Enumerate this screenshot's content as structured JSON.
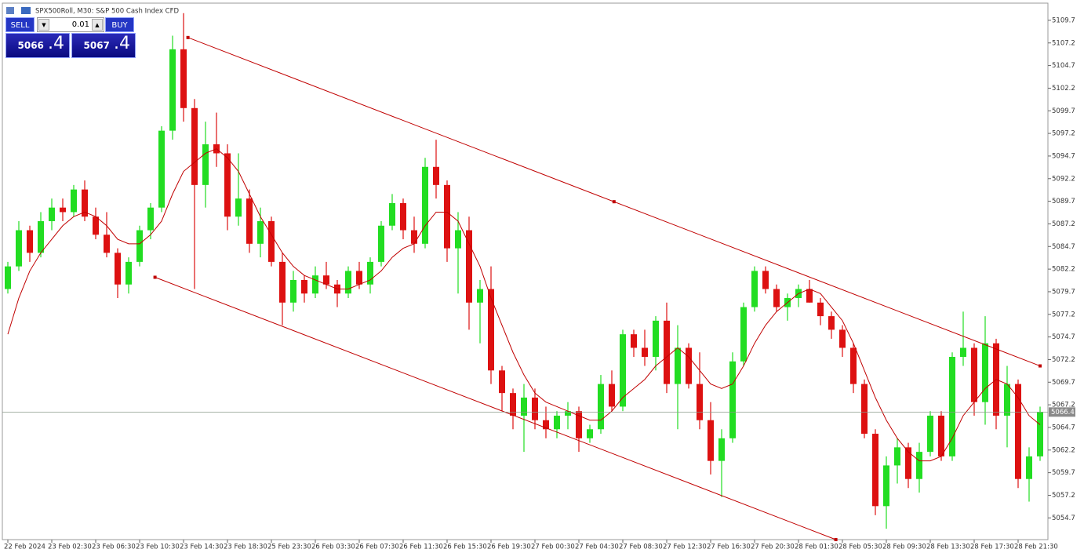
{
  "header": {
    "title": "SPX500Roll, M30:  S&P 500 Cash Index CFD"
  },
  "trade_panel": {
    "sell": "SELL",
    "buy": "BUY",
    "volume": "0.01",
    "bid": {
      "big": "5066",
      "small": ".4"
    },
    "ask": {
      "big": "5067",
      "small": ".4"
    }
  },
  "chart_data": {
    "type": "candlestick",
    "categories": [
      "22 Feb 2024",
      null,
      null,
      null,
      "23 Feb 02:30",
      null,
      null,
      null,
      "23 Feb 06:30",
      null,
      null,
      null,
      "23 Feb 10:30",
      null,
      null,
      null,
      "23 Feb 14:30",
      null,
      null,
      null,
      "23 Feb 18:30",
      null,
      null,
      null,
      "25 Feb 23:30",
      null,
      null,
      null,
      "26 Feb 03:30",
      null,
      null,
      null,
      "26 Feb 07:30",
      null,
      null,
      null,
      "26 Feb 11:30",
      null,
      null,
      null,
      "26 Feb 15:30",
      null,
      null,
      null,
      "26 Feb 19:30",
      null,
      null,
      null,
      "27 Feb 00:30",
      null,
      null,
      null,
      "27 Feb 04:30",
      null,
      null,
      null,
      "27 Feb 08:30",
      null,
      null,
      null,
      "27 Feb 12:30",
      null,
      null,
      null,
      "27 Feb 16:30",
      null,
      null,
      null,
      "27 Feb 20:30",
      null,
      null,
      null,
      "28 Feb 01:30",
      null,
      null,
      null,
      "28 Feb 05:30",
      null,
      null,
      null,
      "28 Feb 09:30",
      null,
      null,
      null,
      "28 Feb 13:30",
      null,
      null,
      null,
      "28 Feb 17:30",
      null,
      null,
      null,
      "28 Feb 21:30",
      null,
      null
    ],
    "ohlc": [
      [
        5080.0,
        5083.0,
        5079.5,
        5082.5
      ],
      [
        5082.5,
        5087.5,
        5082.0,
        5086.5
      ],
      [
        5086.5,
        5087.0,
        5083.0,
        5084.0
      ],
      [
        5084.0,
        5088.5,
        5083.5,
        5087.5
      ],
      [
        5087.5,
        5090.0,
        5086.5,
        5089.0
      ],
      [
        5089.0,
        5090.0,
        5087.5,
        5088.5
      ],
      [
        5088.5,
        5091.5,
        5088.0,
        5091.0
      ],
      [
        5091.0,
        5092.0,
        5087.5,
        5088.0
      ],
      [
        5088.0,
        5089.0,
        5085.5,
        5086.0
      ],
      [
        5086.0,
        5088.5,
        5083.5,
        5084.0
      ],
      [
        5084.0,
        5084.5,
        5079.0,
        5080.5
      ],
      [
        5080.5,
        5083.5,
        5079.5,
        5083.0
      ],
      [
        5083.0,
        5087.0,
        5082.5,
        5086.5
      ],
      [
        5086.5,
        5089.5,
        5085.5,
        5089.0
      ],
      [
        5089.0,
        5098.0,
        5088.5,
        5097.5
      ],
      [
        5097.5,
        5108.0,
        5096.5,
        5106.5
      ],
      [
        5106.5,
        5110.5,
        5098.5,
        5100.0
      ],
      [
        5100.0,
        5101.0,
        5080.0,
        5091.5
      ],
      [
        5091.5,
        5098.5,
        5089.0,
        5096.0
      ],
      [
        5096.0,
        5099.5,
        5093.5,
        5095.0
      ],
      [
        5095.0,
        5096.0,
        5086.5,
        5088.0
      ],
      [
        5088.0,
        5095.0,
        5087.0,
        5090.0
      ],
      [
        5090.0,
        5091.0,
        5084.0,
        5085.0
      ],
      [
        5085.0,
        5089.0,
        5083.5,
        5087.5
      ],
      [
        5087.5,
        5088.0,
        5082.5,
        5083.0
      ],
      [
        5083.0,
        5084.0,
        5076.0,
        5078.5
      ],
      [
        5078.5,
        5082.0,
        5077.5,
        5081.0
      ],
      [
        5081.0,
        5081.5,
        5078.5,
        5079.5
      ],
      [
        5079.5,
        5082.5,
        5079.0,
        5081.5
      ],
      [
        5081.5,
        5083.0,
        5080.0,
        5080.5
      ],
      [
        5080.5,
        5081.0,
        5078.0,
        5079.5
      ],
      [
        5079.5,
        5082.5,
        5079.0,
        5082.0
      ],
      [
        5082.0,
        5083.0,
        5080.0,
        5080.5
      ],
      [
        5080.5,
        5083.5,
        5079.5,
        5083.0
      ],
      [
        5083.0,
        5087.5,
        5082.5,
        5087.0
      ],
      [
        5087.0,
        5090.5,
        5086.5,
        5089.5
      ],
      [
        5089.5,
        5090.0,
        5085.5,
        5086.5
      ],
      [
        5086.5,
        5088.0,
        5084.0,
        5085.0
      ],
      [
        5085.0,
        5094.5,
        5084.5,
        5093.5
      ],
      [
        5093.5,
        5096.5,
        5090.0,
        5091.5
      ],
      [
        5091.5,
        5092.0,
        5083.0,
        5084.5
      ],
      [
        5084.5,
        5088.5,
        5079.5,
        5086.5
      ],
      [
        5086.5,
        5088.0,
        5075.5,
        5078.5
      ],
      [
        5078.5,
        5081.0,
        5074.0,
        5080.0
      ],
      [
        5080.0,
        5082.5,
        5069.5,
        5071.0
      ],
      [
        5071.0,
        5071.5,
        5066.5,
        5068.5
      ],
      [
        5068.5,
        5069.0,
        5064.5,
        5066.0
      ],
      [
        5066.0,
        5069.5,
        5062.0,
        5068.0
      ],
      [
        5068.0,
        5069.0,
        5064.5,
        5065.5
      ],
      [
        5065.5,
        5067.0,
        5063.5,
        5064.5
      ],
      [
        5064.5,
        5066.5,
        5063.5,
        5066.0
      ],
      [
        5066.0,
        5067.5,
        5064.5,
        5066.5
      ],
      [
        5066.5,
        5067.0,
        5062.0,
        5063.5
      ],
      [
        5063.5,
        5065.0,
        5063.0,
        5064.5
      ],
      [
        5064.5,
        5070.5,
        5064.0,
        5069.5
      ],
      [
        5069.5,
        5071.0,
        5066.5,
        5067.0
      ],
      [
        5067.0,
        5075.5,
        5066.5,
        5075.0
      ],
      [
        5075.0,
        5075.5,
        5072.5,
        5073.5
      ],
      [
        5073.5,
        5075.5,
        5071.5,
        5072.5
      ],
      [
        5072.5,
        5077.0,
        5071.0,
        5076.5
      ],
      [
        5076.5,
        5078.5,
        5068.5,
        5069.5
      ],
      [
        5069.5,
        5076.0,
        5064.5,
        5073.5
      ],
      [
        5073.5,
        5074.0,
        5069.0,
        5069.5
      ],
      [
        5069.5,
        5073.0,
        5064.5,
        5065.5
      ],
      [
        5065.5,
        5067.5,
        5059.5,
        5061.0
      ],
      [
        5061.0,
        5064.5,
        5057.0,
        5063.5
      ],
      [
        5063.5,
        5073.0,
        5063.0,
        5072.0
      ],
      [
        5072.0,
        5078.5,
        5071.5,
        5078.0
      ],
      [
        5078.0,
        5082.5,
        5077.5,
        5082.0
      ],
      [
        5082.0,
        5082.5,
        5079.5,
        5080.0
      ],
      [
        5080.0,
        5080.5,
        5077.5,
        5078.0
      ],
      [
        5078.0,
        5079.5,
        5076.5,
        5079.0
      ],
      [
        5079.0,
        5080.5,
        5078.0,
        5080.0
      ],
      [
        5080.0,
        5081.0,
        5078.5,
        5078.5
      ],
      [
        5078.5,
        5079.0,
        5076.0,
        5077.0
      ],
      [
        5077.0,
        5077.5,
        5074.5,
        5075.5
      ],
      [
        5075.5,
        5076.0,
        5072.5,
        5073.5
      ],
      [
        5073.5,
        5074.0,
        5068.5,
        5069.5
      ],
      [
        5069.5,
        5070.0,
        5063.5,
        5064.0
      ],
      [
        5064.0,
        5064.5,
        5055.0,
        5056.0
      ],
      [
        5056.0,
        5061.5,
        5053.5,
        5060.5
      ],
      [
        5060.5,
        5063.5,
        5058.5,
        5062.5
      ],
      [
        5062.5,
        5063.0,
        5058.0,
        5059.0
      ],
      [
        5059.0,
        5063.0,
        5057.5,
        5062.0
      ],
      [
        5062.0,
        5066.5,
        5061.5,
        5066.0
      ],
      [
        5066.0,
        5066.5,
        5061.0,
        5061.5
      ],
      [
        5061.5,
        5073.0,
        5061.0,
        5072.5
      ],
      [
        5072.5,
        5077.5,
        5071.5,
        5073.5
      ],
      [
        5073.5,
        5074.0,
        5066.0,
        5067.5
      ],
      [
        5067.5,
        5077.0,
        5065.0,
        5074.0
      ],
      [
        5074.0,
        5074.5,
        5064.5,
        5066.0
      ],
      [
        5066.0,
        5071.5,
        5062.5,
        5069.5
      ],
      [
        5069.5,
        5070.0,
        5058.0,
        5059.0
      ],
      [
        5059.0,
        5062.5,
        5056.5,
        5061.5
      ],
      [
        5061.5,
        5067.0,
        5061.0,
        5066.4
      ]
    ],
    "ma_values": [
      5075.0,
      5079.0,
      5082.0,
      5084.0,
      5085.5,
      5087.0,
      5088.0,
      5088.5,
      5088.0,
      5087.0,
      5085.5,
      5085.0,
      5085.0,
      5086.0,
      5087.5,
      5090.5,
      5093.0,
      5094.0,
      5095.0,
      5095.5,
      5094.5,
      5093.0,
      5090.5,
      5088.0,
      5086.0,
      5084.0,
      5082.5,
      5081.5,
      5081.0,
      5080.5,
      5080.0,
      5080.0,
      5080.5,
      5081.0,
      5082.0,
      5083.5,
      5084.5,
      5085.0,
      5087.0,
      5088.5,
      5088.5,
      5087.5,
      5085.0,
      5082.5,
      5079.0,
      5076.0,
      5073.0,
      5070.5,
      5068.5,
      5067.5,
      5067.0,
      5066.5,
      5066.0,
      5065.5,
      5065.5,
      5066.5,
      5068.0,
      5069.0,
      5070.0,
      5071.5,
      5072.5,
      5073.5,
      5072.5,
      5071.0,
      5069.5,
      5069.0,
      5069.5,
      5071.5,
      5074.0,
      5076.0,
      5077.5,
      5078.5,
      5079.5,
      5080.0,
      5079.5,
      5078.0,
      5076.5,
      5074.0,
      5071.0,
      5068.0,
      5065.5,
      5063.5,
      5062.0,
      5061.0,
      5061.0,
      5061.5,
      5063.5,
      5066.0,
      5067.5,
      5069.0,
      5070.0,
      5069.5,
      5068.0,
      5066.0,
      5065.0
    ],
    "channel": {
      "upper": {
        "x": [
          16.4,
          94
        ],
        "y": [
          5107.8,
          5071.5
        ]
      },
      "lower": {
        "x": [
          13.4,
          75.4
        ],
        "y": [
          5081.3,
          5052.3
        ]
      }
    },
    "last_price": 5066.4,
    "ylim": [
      5052.3,
      5111.6
    ],
    "yticks": [
      5054.7,
      5057.2,
      5059.7,
      5062.2,
      5064.7,
      5067.2,
      5069.7,
      5072.2,
      5074.7,
      5077.2,
      5079.7,
      5082.2,
      5084.7,
      5087.2,
      5089.7,
      5092.2,
      5094.7,
      5097.2,
      5099.7,
      5102.2,
      5104.7,
      5107.2,
      5109.7
    ],
    "up_color": "#22dd22",
    "down_color": "#dd1111",
    "ma_color": "#c00000",
    "channel_color": "#c00000"
  }
}
